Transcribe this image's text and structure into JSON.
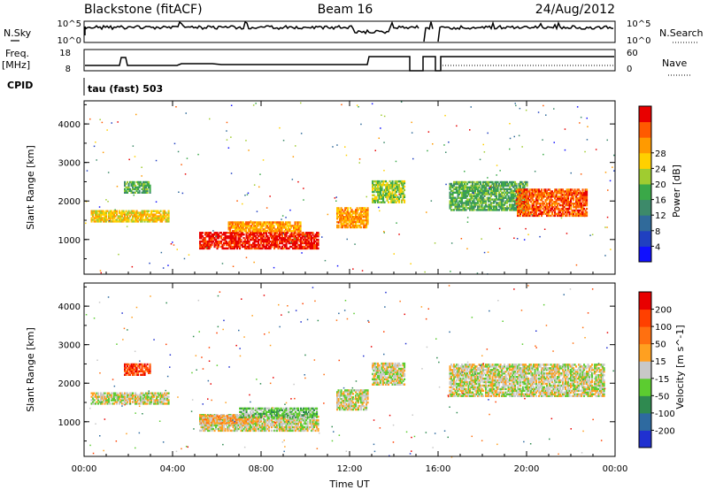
{
  "header": {
    "station": "Blackstone (fitACF)",
    "beam": "Beam 16",
    "date": "24/Aug/2012"
  },
  "top_panels": {
    "nsky_label": "N.Sky",
    "nsky_ticks": [
      "10^5",
      "10^0"
    ],
    "nsearch_label": "N.Search",
    "nsearch_ticks": [
      "10^5",
      "10^0"
    ],
    "freq_label": "Freq.",
    "freq_unit": "[MHz]",
    "freq_ticks": [
      "18",
      "8"
    ],
    "nave_label": "Nave",
    "nave_ticks": [
      "60",
      "0"
    ],
    "cpid_label": "CPID",
    "cpid_value": "tau (fast) 503"
  },
  "chart_data": [
    {
      "type": "heatmap",
      "name": "power-panel",
      "ylabel": "Slant Range [km]",
      "xlabel": "",
      "y_ticks": [
        1000,
        2000,
        3000,
        4000
      ],
      "ylim": [
        100,
        4600
      ],
      "x_ticks": [
        "00:00",
        "04:00",
        "08:00",
        "12:00",
        "16:00",
        "20:00",
        "00:00"
      ],
      "xlim_hours": [
        0,
        24
      ],
      "colorbar": {
        "label": "Power [dB]",
        "ticks": [
          "4",
          "8",
          "12",
          "16",
          "20",
          "24",
          "28"
        ],
        "colors": [
          "#1010ff",
          "#2040c0",
          "#306a9a",
          "#3d8a6a",
          "#3aa848",
          "#a0cc30",
          "#ffd000",
          "#ff9a00",
          "#ff5a00",
          "#e80000"
        ]
      },
      "features": [
        {
          "t0": 0.3,
          "t1": 3.8,
          "r0": 1450,
          "r1": 1750,
          "level": 6
        },
        {
          "t0": 1.8,
          "t1": 3.0,
          "r0": 2200,
          "r1": 2500,
          "level": 4
        },
        {
          "t0": 5.2,
          "t1": 10.6,
          "r0": 750,
          "r1": 1200,
          "level": 9
        },
        {
          "t0": 6.5,
          "t1": 9.8,
          "r0": 1200,
          "r1": 1450,
          "level": 7
        },
        {
          "t0": 11.4,
          "t1": 12.8,
          "r0": 1300,
          "r1": 1800,
          "level": 7
        },
        {
          "t0": 13.0,
          "t1": 14.5,
          "r0": 1950,
          "r1": 2500,
          "level": 5
        },
        {
          "t0": 16.5,
          "t1": 20.0,
          "r0": 1750,
          "r1": 2500,
          "level": 4
        },
        {
          "t0": 19.5,
          "t1": 22.7,
          "r0": 1600,
          "r1": 2300,
          "level": 8
        }
      ]
    },
    {
      "type": "heatmap",
      "name": "velocity-panel",
      "ylabel": "Slant Range [km]",
      "xlabel": "Time UT",
      "y_ticks": [
        1000,
        2000,
        3000,
        4000
      ],
      "ylim": [
        100,
        4600
      ],
      "x_ticks": [
        "00:00",
        "04:00",
        "08:00",
        "12:00",
        "16:00",
        "20:00",
        "00:00"
      ],
      "xlim_hours": [
        0,
        24
      ],
      "colorbar": {
        "label": "Velocity [m s^-1]",
        "ticks": [
          "200",
          "100",
          "50",
          "15",
          "-15",
          "-50",
          "-100",
          "-200"
        ],
        "colors": [
          "#2030d0",
          "#2e6aa0",
          "#2f8a50",
          "#5ccc30",
          "#c8c8c8",
          "#ffa020",
          "#ff7010",
          "#ff4000",
          "#e80000"
        ]
      },
      "features": [
        {
          "t0": 0.3,
          "t1": 3.8,
          "r0": 1450,
          "r1": 1750,
          "level": 4
        },
        {
          "t0": 1.8,
          "t1": 3.0,
          "r0": 2200,
          "r1": 2500,
          "level": 7
        },
        {
          "t0": 5.2,
          "t1": 10.6,
          "r0": 750,
          "r1": 1200,
          "level": 4
        },
        {
          "t0": 5.2,
          "t1": 8.0,
          "r0": 950,
          "r1": 1150,
          "level": 5
        },
        {
          "t0": 7.0,
          "t1": 10.5,
          "r0": 1100,
          "r1": 1350,
          "level": 3
        },
        {
          "t0": 11.4,
          "t1": 12.8,
          "r0": 1300,
          "r1": 1800,
          "level": 4
        },
        {
          "t0": 13.0,
          "t1": 14.5,
          "r0": 1950,
          "r1": 2500,
          "level": 4
        },
        {
          "t0": 16.5,
          "t1": 23.5,
          "r0": 1650,
          "r1": 2500,
          "level": 4
        }
      ]
    }
  ]
}
